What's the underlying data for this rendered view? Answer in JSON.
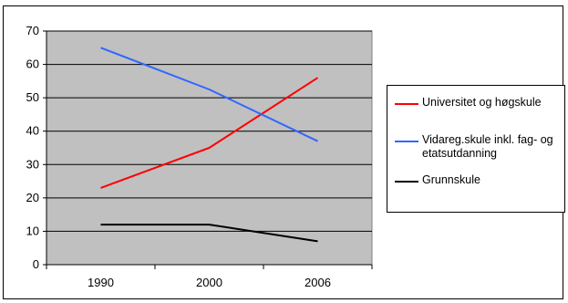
{
  "chart_data": {
    "type": "line",
    "title": "",
    "xlabel": "",
    "ylabel": "",
    "categories": [
      "1990",
      "2000",
      "2006"
    ],
    "ylim": [
      0,
      70
    ],
    "yticks": [
      "0",
      "10",
      "20",
      "30",
      "40",
      "50",
      "60",
      "70"
    ],
    "grid": true,
    "plot_background": "#c0c0c0",
    "legend_position": "right",
    "series": [
      {
        "name": "Universitet og høgskule",
        "color": "#ff0000",
        "values": [
          23,
          35,
          56
        ]
      },
      {
        "name": "Vidareg.skule inkl. fag- og etatsutdanning",
        "color": "#3366ff",
        "values": [
          65,
          52.5,
          37
        ]
      },
      {
        "name": "Grunnskule",
        "color": "#000000",
        "values": [
          12,
          12,
          7
        ]
      }
    ]
  }
}
